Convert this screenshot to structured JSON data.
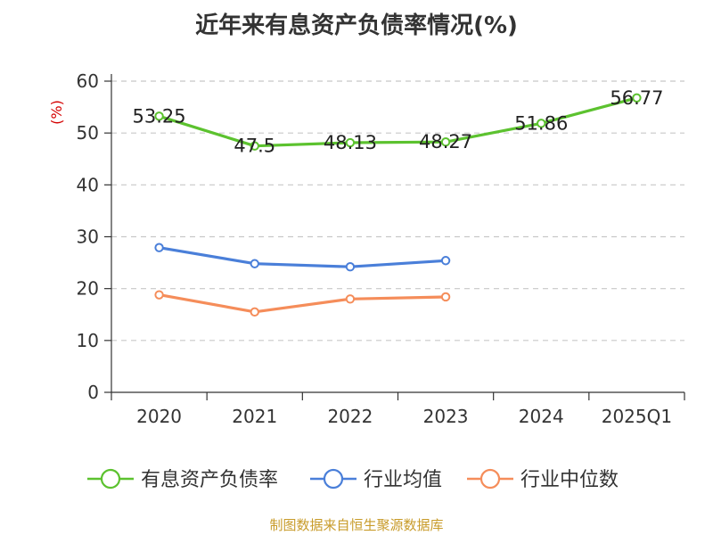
{
  "chart_data": {
    "type": "line",
    "title": "近年来有息资产负债率情况(%)",
    "unit_label": "(%)",
    "categories": [
      "2020",
      "2021",
      "2022",
      "2023",
      "2024",
      "2025Q1"
    ],
    "y_ticks": [
      "0",
      "10",
      "20",
      "30",
      "40",
      "50",
      "60"
    ],
    "ylim": [
      0,
      60
    ],
    "grid": true,
    "legend_position": "bottom",
    "series": [
      {
        "name": "有息资产负债率",
        "color": "#5cc22f",
        "values": [
          53.25,
          47.5,
          48.13,
          48.27,
          51.86,
          56.77
        ],
        "labels": [
          "53.25",
          "47.5",
          "48.13",
          "48.27",
          "51.86",
          "56.77"
        ]
      },
      {
        "name": "行业均值",
        "color": "#4a7fd9",
        "values": [
          27.9,
          24.8,
          24.2,
          25.4,
          null,
          null
        ]
      },
      {
        "name": "行业中位数",
        "color": "#f58d5a",
        "values": [
          18.8,
          15.5,
          18.0,
          18.4,
          null,
          null
        ]
      }
    ]
  },
  "source": "制图数据来自恒生聚源数据库"
}
